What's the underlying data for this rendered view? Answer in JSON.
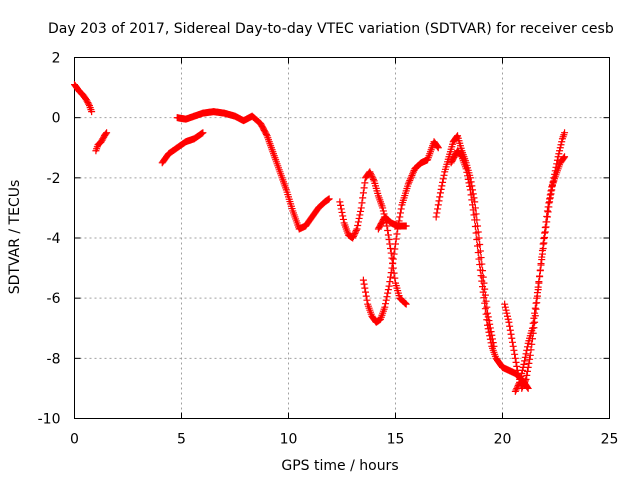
{
  "chart_data": {
    "type": "scatter",
    "title": "Day 203 of 2017, Sidereal Day-to-day VTEC variation (SDTVAR) for receiver cesb",
    "xlabel": "GPS time / hours",
    "ylabel": "SDTVAR / TECUs",
    "xlim": [
      0,
      25
    ],
    "ylim": [
      -10,
      2
    ],
    "xticks": [
      0,
      5,
      10,
      15,
      20,
      25
    ],
    "yticks": [
      -10,
      -8,
      -6,
      -4,
      -2,
      0,
      2
    ],
    "grid": true,
    "marker": "plus",
    "color": "#ff0000",
    "segments": [
      {
        "x": [
          0.0,
          0.2,
          0.4,
          0.55,
          0.7,
          0.8
        ],
        "y": [
          1.1,
          0.9,
          0.75,
          0.6,
          0.4,
          0.2
        ]
      },
      {
        "x": [
          1.0,
          1.1,
          1.25,
          1.4,
          1.5
        ],
        "y": [
          -1.1,
          -0.9,
          -0.8,
          -0.6,
          -0.5
        ]
      },
      {
        "x": [
          4.1,
          4.4,
          4.8,
          5.2,
          5.6,
          6.0
        ],
        "y": [
          -1.5,
          -1.2,
          -1.0,
          -0.8,
          -0.7,
          -0.5
        ]
      },
      {
        "x": [
          4.8,
          5.2,
          5.6,
          6.0,
          6.5,
          7.0,
          7.5,
          7.9,
          8.3,
          8.7,
          9.0,
          9.3,
          9.6,
          9.9,
          10.2,
          10.5,
          10.8,
          11.1,
          11.4,
          11.7,
          11.9
        ],
        "y": [
          0.0,
          -0.05,
          0.05,
          0.15,
          0.2,
          0.15,
          0.05,
          -0.1,
          0.05,
          -0.2,
          -0.6,
          -1.2,
          -1.8,
          -2.4,
          -3.1,
          -3.7,
          -3.6,
          -3.3,
          -3.0,
          -2.8,
          -2.7
        ]
      },
      {
        "x": [
          12.4,
          12.6,
          12.8,
          13.0,
          13.2,
          13.4,
          13.6,
          13.8,
          14.0,
          14.2,
          14.4,
          14.6,
          14.8,
          15.0,
          15.2,
          15.5
        ],
        "y": [
          -2.8,
          -3.5,
          -3.9,
          -4.0,
          -3.7,
          -3.0,
          -2.0,
          -1.8,
          -2.1,
          -2.6,
          -3.0,
          -3.6,
          -4.5,
          -5.5,
          -6.0,
          -6.2
        ]
      },
      {
        "x": [
          13.5,
          13.7,
          13.9,
          14.1,
          14.3,
          14.5,
          14.7,
          14.9,
          15.1,
          15.3,
          15.6,
          15.9,
          16.2,
          16.5,
          16.8,
          17.0
        ],
        "y": [
          -5.4,
          -6.2,
          -6.6,
          -6.8,
          -6.7,
          -6.3,
          -5.6,
          -4.7,
          -3.7,
          -2.9,
          -2.2,
          -1.7,
          -1.5,
          -1.4,
          -0.8,
          -1.0
        ]
      },
      {
        "x": [
          14.2,
          14.5,
          14.8,
          15.1,
          15.3,
          15.5
        ],
        "y": [
          -3.7,
          -3.3,
          -3.5,
          -3.6,
          -3.6,
          -3.6
        ]
      },
      {
        "x": [
          16.9,
          17.1,
          17.3,
          17.5,
          17.7,
          17.9,
          18.1,
          18.3,
          18.5,
          18.7,
          18.9,
          19.1,
          19.3,
          19.6
        ],
        "y": [
          -3.3,
          -2.5,
          -1.8,
          -1.3,
          -0.8,
          -0.6,
          -1.1,
          -1.5,
          -2.0,
          -2.8,
          -4.0,
          -5.3,
          -6.5,
          -7.6
        ]
      },
      {
        "x": [
          17.6,
          17.9,
          18.1,
          18.3,
          18.5,
          18.7,
          18.9,
          19.1,
          19.3,
          19.5,
          19.7,
          20.0,
          20.3,
          20.6,
          20.9,
          21.2
        ],
        "y": [
          -1.5,
          -1.1,
          -1.3,
          -1.7,
          -2.4,
          -3.4,
          -4.7,
          -5.8,
          -6.9,
          -7.6,
          -8.0,
          -8.3,
          -8.4,
          -8.5,
          -8.7,
          -9.0
        ]
      },
      {
        "x": [
          20.1,
          20.3,
          20.5,
          20.7,
          20.9,
          21.1,
          21.3,
          21.5,
          21.7,
          21.9,
          22.1,
          22.3,
          22.5,
          22.7,
          22.9
        ],
        "y": [
          -6.2,
          -6.8,
          -7.6,
          -8.4,
          -9.0,
          -8.7,
          -7.9,
          -6.8,
          -5.5,
          -4.2,
          -3.1,
          -2.3,
          -1.9,
          -1.5,
          -1.3
        ]
      },
      {
        "x": [
          20.6,
          20.8,
          21.0,
          21.2,
          21.4,
          21.6,
          21.8,
          22.0,
          22.2,
          22.4,
          22.6,
          22.8,
          22.9
        ],
        "y": [
          -9.1,
          -8.8,
          -8.2,
          -7.5,
          -7.0,
          -6.0,
          -4.9,
          -3.8,
          -2.8,
          -2.0,
          -1.3,
          -0.7,
          -0.5
        ]
      }
    ]
  }
}
